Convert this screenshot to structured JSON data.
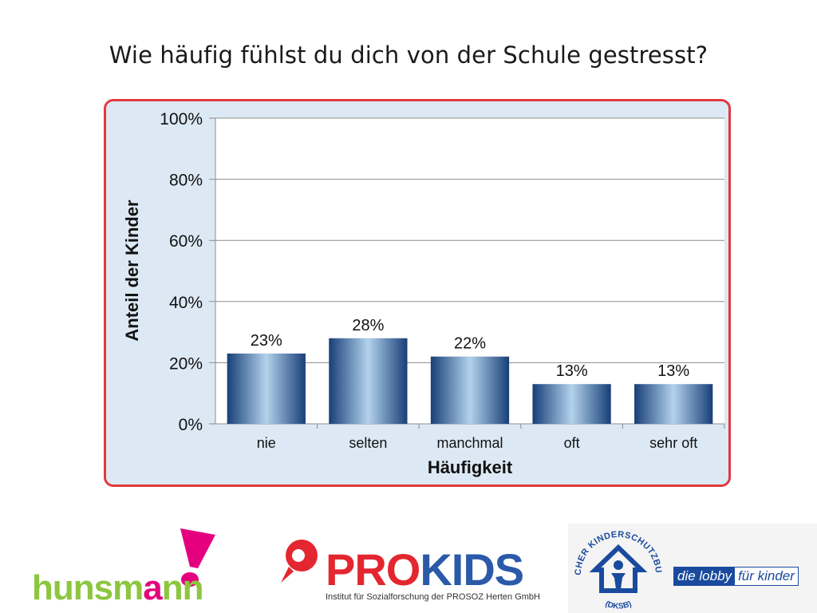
{
  "slide": {
    "title": "Wie häufig fühlst du dich von der Schule gestresst?"
  },
  "colors": {
    "frame_border": "#e0393e",
    "frame_fill": "#dce9f5",
    "bar_dark": "#1f4e8c",
    "bar_light": "#a9cbe6",
    "gridline": "#8c8c8c"
  },
  "chart_data": {
    "type": "bar",
    "categories": [
      "nie",
      "selten",
      "manchmal",
      "oft",
      "sehr oft"
    ],
    "values": [
      23,
      28,
      22,
      13,
      13
    ],
    "value_labels": [
      "23%",
      "28%",
      "22%",
      "13%",
      "13%"
    ],
    "xlabel": "Häufigkeit",
    "ylabel": "Anteil der Kinder",
    "ylim": [
      0,
      100
    ],
    "yticks": [
      0,
      20,
      40,
      60,
      80,
      100
    ],
    "ytick_labels": [
      "0%",
      "20%",
      "40%",
      "60%",
      "80%",
      "100%"
    ],
    "grid": true,
    "legend": "none"
  },
  "logos": {
    "hunsmann": {
      "text_part1": "hunsm",
      "text_part2": "a",
      "text_part3": "nn"
    },
    "prokids": {
      "word_part1": "PRO",
      "word_part2": "KIDS",
      "subtitle": "Institut für Sozialforschung der PROSOZ Herten GmbH"
    },
    "dksb": {
      "seal_text_top": "DEUTSCHER KINDERSCHUTZBUND E.V.",
      "seal_text_bottom": "(DKSB)",
      "lobby_part1": "die lobby",
      "lobby_part2": "für kinder"
    }
  }
}
